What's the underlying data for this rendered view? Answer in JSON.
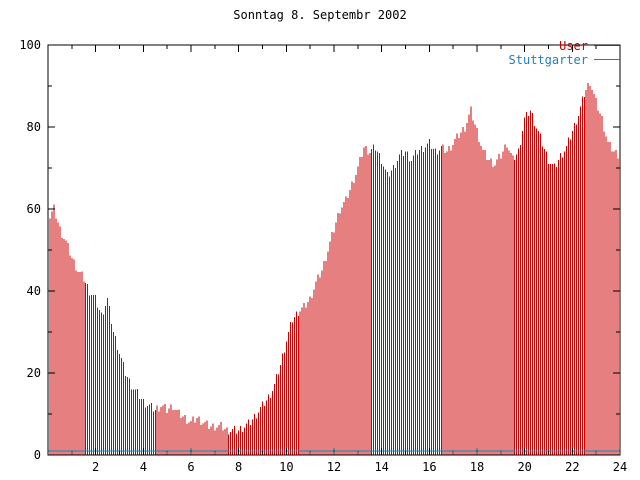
{
  "chart_data": {
    "type": "bar",
    "title": "Sonntag 8. Septembr 2002",
    "xlabel": "",
    "ylabel": "",
    "xlim": [
      0,
      24
    ],
    "ylim": [
      0,
      100
    ],
    "x_ticks": [
      2,
      4,
      6,
      8,
      10,
      12,
      14,
      16,
      18,
      20,
      22,
      24
    ],
    "y_ticks": [
      0,
      20,
      40,
      60,
      80,
      100
    ],
    "x_step_hours": 0.25,
    "grid": "off",
    "legend_position": "top-right-inside",
    "legend": [
      {
        "label": "User",
        "color": "#cc0000"
      },
      {
        "label": "Stuttgarter",
        "color": "#2080b8"
      }
    ],
    "series": [
      {
        "name": "User",
        "color": "#cc0000",
        "style": "impulses",
        "values": [
          57,
          60,
          55,
          52,
          48,
          45,
          43,
          40,
          38,
          34,
          38,
          30,
          25,
          20,
          17,
          15,
          13,
          12,
          11,
          12,
          11,
          12,
          10,
          9,
          8,
          9,
          8,
          7,
          7,
          7,
          6,
          6,
          6,
          7,
          8,
          10,
          12,
          14,
          17,
          22,
          28,
          33,
          35,
          36,
          38,
          42,
          45,
          50,
          55,
          60,
          62,
          66,
          70,
          75,
          74,
          75,
          72,
          68,
          70,
          73,
          74,
          72,
          74,
          75,
          76,
          74,
          75,
          74,
          76,
          78,
          80,
          84,
          79,
          74,
          72,
          71,
          73,
          76,
          72,
          74,
          82,
          84,
          80,
          76,
          72,
          70,
          73,
          75,
          79,
          83,
          88,
          91,
          86,
          82,
          76,
          74,
          73
        ]
      },
      {
        "name": "Stuttgarter",
        "color": "#2080b8",
        "style": "line",
        "constant": 1
      }
    ],
    "colors": {
      "axis": "#000000",
      "background": "#ffffff"
    }
  }
}
